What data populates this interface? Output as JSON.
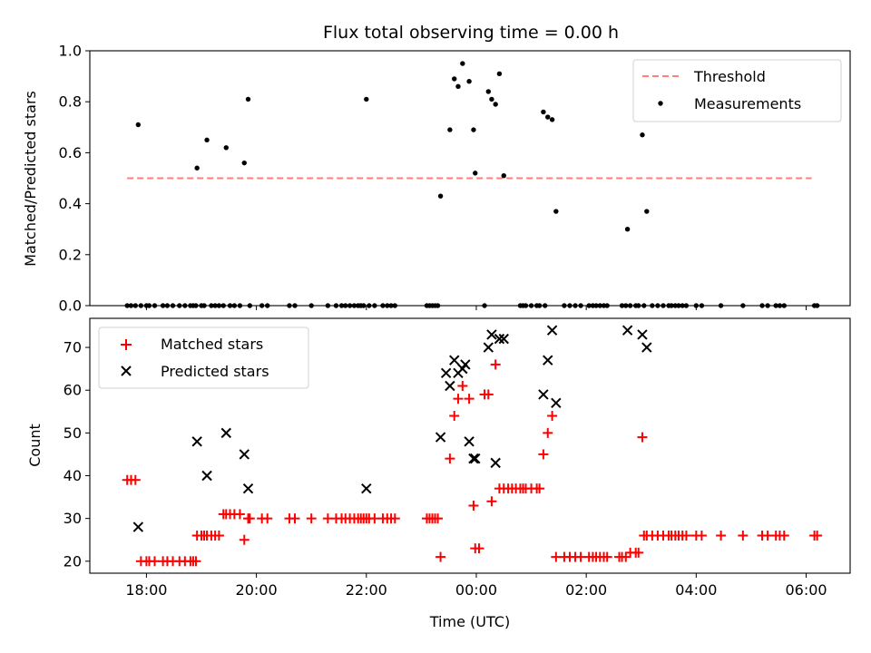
{
  "chart_data": [
    {
      "type": "scatter",
      "title": "Flux total observing time = 0.00 h",
      "xlabel": "",
      "ylabel": "Matched/Predicted stars",
      "xlim": [
        16.97,
        30.8
      ],
      "ylim": [
        0.0,
        1.0
      ],
      "yticks": [
        "0.0",
        "0.2",
        "0.4",
        "0.6",
        "0.8",
        "1.0"
      ],
      "legend_position": "top-right",
      "threshold": {
        "name": "Threshold",
        "value": 0.5,
        "x_start": 17.65,
        "x_end": 30.1,
        "color": "#ff7f7f"
      },
      "series": [
        {
          "name": "Measurements",
          "color": "#000000",
          "x": [
            17.85,
            18.92,
            19.1,
            19.45,
            19.78,
            19.85,
            22.0,
            23.35,
            23.52,
            23.6,
            23.67,
            23.75,
            23.87,
            23.95,
            23.98,
            24.22,
            24.28,
            24.35,
            24.42,
            24.5,
            25.22,
            25.3,
            25.38,
            25.45,
            26.75,
            27.02,
            27.1,
            17.65,
            17.72,
            17.8,
            17.9,
            18.0,
            18.05,
            18.15,
            18.3,
            18.38,
            18.48,
            18.6,
            18.7,
            18.8,
            18.85,
            18.9,
            19.0,
            19.05,
            19.18,
            19.25,
            19.32,
            19.4,
            19.52,
            19.6,
            19.7,
            19.88,
            20.1,
            20.2,
            20.6,
            20.7,
            21.0,
            21.3,
            21.45,
            21.55,
            21.62,
            21.7,
            21.78,
            21.85,
            21.9,
            21.95,
            22.05,
            22.15,
            22.3,
            22.38,
            22.45,
            22.52,
            23.1,
            23.15,
            23.2,
            23.25,
            23.3,
            24.15,
            24.8,
            24.85,
            24.9,
            25.0,
            25.1,
            25.15,
            25.25,
            25.6,
            25.7,
            25.8,
            25.9,
            26.05,
            26.12,
            26.18,
            26.25,
            26.32,
            26.38,
            26.65,
            26.72,
            26.8,
            26.9,
            26.95,
            27.05,
            27.2,
            27.3,
            27.4,
            27.5,
            27.55,
            27.62,
            27.68,
            27.75,
            27.82,
            28.0,
            28.1,
            28.45,
            28.85,
            29.2,
            29.3,
            29.45,
            29.52,
            29.6,
            30.15,
            30.2
          ],
          "y": [
            0.71,
            0.54,
            0.65,
            0.62,
            0.56,
            0.81,
            0.81,
            0.43,
            0.69,
            0.89,
            0.86,
            0.95,
            0.88,
            0.69,
            0.52,
            0.84,
            0.81,
            0.79,
            0.91,
            0.51,
            0.76,
            0.74,
            0.73,
            0.37,
            0.3,
            0.67,
            0.37,
            0.0,
            0.0,
            0.0,
            0.0,
            0.0,
            0.0,
            0.0,
            0.0,
            0.0,
            0.0,
            0.0,
            0.0,
            0.0,
            0.0,
            0.0,
            0.0,
            0.0,
            0.0,
            0.0,
            0.0,
            0.0,
            0.0,
            0.0,
            0.0,
            0.0,
            0.0,
            0.0,
            0.0,
            0.0,
            0.0,
            0.0,
            0.0,
            0.0,
            0.0,
            0.0,
            0.0,
            0.0,
            0.0,
            0.0,
            0.0,
            0.0,
            0.0,
            0.0,
            0.0,
            0.0,
            0.0,
            0.0,
            0.0,
            0.0,
            0.0,
            0.0,
            0.0,
            0.0,
            0.0,
            0.0,
            0.0,
            0.0,
            0.0,
            0.0,
            0.0,
            0.0,
            0.0,
            0.0,
            0.0,
            0.0,
            0.0,
            0.0,
            0.0,
            0.0,
            0.0,
            0.0,
            0.0,
            0.0,
            0.0,
            0.0,
            0.0,
            0.0,
            0.0,
            0.0,
            0.0,
            0.0,
            0.0,
            0.0,
            0.0,
            0.0,
            0.0,
            0.0,
            0.0,
            0.0,
            0.0,
            0.0,
            0.0,
            0.0,
            0.0
          ]
        }
      ]
    },
    {
      "type": "scatter",
      "title": "",
      "xlabel": "Time (UTC)",
      "ylabel": "Count",
      "xlim": [
        16.97,
        30.8
      ],
      "ylim": [
        17.2,
        76.8
      ],
      "xticks": [
        {
          "value": 18,
          "label": "18:00"
        },
        {
          "value": 20,
          "label": "20:00"
        },
        {
          "value": 22,
          "label": "22:00"
        },
        {
          "value": 24,
          "label": "00:00"
        },
        {
          "value": 26,
          "label": "02:00"
        },
        {
          "value": 28,
          "label": "04:00"
        },
        {
          "value": 30,
          "label": "06:00"
        }
      ],
      "yticks": [
        20,
        30,
        40,
        50,
        60,
        70
      ],
      "legend_position": "top-left",
      "series": [
        {
          "name": "Matched stars",
          "marker": "plus",
          "color": "#ff0000",
          "x": [
            17.65,
            17.72,
            17.8,
            17.9,
            18.0,
            18.05,
            18.15,
            18.3,
            18.38,
            18.48,
            18.6,
            18.7,
            18.8,
            18.85,
            18.9,
            18.92,
            19.0,
            19.05,
            19.1,
            19.18,
            19.25,
            19.32,
            19.4,
            19.45,
            19.52,
            19.6,
            19.7,
            19.78,
            19.85,
            19.88,
            20.1,
            20.2,
            20.6,
            20.7,
            21.0,
            21.3,
            21.45,
            21.55,
            21.62,
            21.7,
            21.78,
            21.85,
            21.9,
            21.95,
            22.0,
            22.05,
            22.15,
            22.3,
            22.38,
            22.45,
            22.52,
            23.1,
            23.15,
            23.2,
            23.25,
            23.3,
            23.35,
            23.52,
            23.6,
            23.67,
            23.75,
            23.87,
            23.95,
            23.98,
            24.05,
            24.15,
            24.22,
            24.28,
            24.35,
            24.42,
            24.5,
            24.58,
            24.65,
            24.72,
            24.8,
            24.85,
            24.9,
            25.0,
            25.1,
            25.15,
            25.22,
            25.3,
            25.38,
            25.45,
            25.6,
            25.7,
            25.8,
            25.9,
            26.05,
            26.12,
            26.18,
            26.25,
            26.32,
            26.38,
            26.6,
            26.65,
            26.72,
            26.8,
            26.9,
            26.95,
            27.02,
            27.05,
            27.1,
            27.2,
            27.3,
            27.4,
            27.5,
            27.55,
            27.62,
            27.68,
            27.75,
            27.82,
            28.0,
            28.1,
            28.45,
            28.85,
            29.2,
            29.3,
            29.45,
            29.52,
            29.6,
            30.15,
            30.2
          ],
          "y": [
            39,
            39,
            39,
            20,
            20,
            20,
            20,
            20,
            20,
            20,
            20,
            20,
            20,
            20,
            20,
            26,
            26,
            26,
            26,
            26,
            26,
            26,
            31,
            31,
            31,
            31,
            31,
            25,
            30,
            30,
            30,
            30,
            30,
            30,
            30,
            30,
            30,
            30,
            30,
            30,
            30,
            30,
            30,
            30,
            30,
            30,
            30,
            30,
            30,
            30,
            30,
            30,
            30,
            30,
            30,
            30,
            21,
            44,
            54,
            58,
            61,
            58,
            33,
            23,
            23,
            59,
            59,
            34,
            66,
            37,
            37,
            37,
            37,
            37,
            37,
            37,
            37,
            37,
            37,
            37,
            45,
            50,
            54,
            21,
            21,
            21,
            21,
            21,
            21,
            21,
            21,
            21,
            21,
            21,
            21,
            21,
            21,
            22,
            22,
            22,
            49,
            26,
            26,
            26,
            26,
            26,
            26,
            26,
            26,
            26,
            26,
            26,
            26,
            26,
            26,
            26,
            26,
            26,
            26,
            26,
            26,
            26,
            26
          ]
        },
        {
          "name": "Predicted stars",
          "marker": "x",
          "color": "#000000",
          "x": [
            17.85,
            18.92,
            19.1,
            19.45,
            19.78,
            19.85,
            22.0,
            23.35,
            23.45,
            23.52,
            23.6,
            23.67,
            23.75,
            23.8,
            23.87,
            23.95,
            23.98,
            24.22,
            24.28,
            24.35,
            24.42,
            24.5,
            25.22,
            25.3,
            25.38,
            25.45,
            26.75,
            27.02,
            27.1
          ],
          "y": [
            28,
            48,
            40,
            50,
            45,
            37,
            37,
            49,
            64,
            61,
            67,
            64,
            65,
            66,
            48,
            44,
            44,
            70,
            73,
            43,
            72,
            72,
            59,
            67,
            74,
            57,
            74,
            73,
            70
          ]
        }
      ]
    }
  ]
}
